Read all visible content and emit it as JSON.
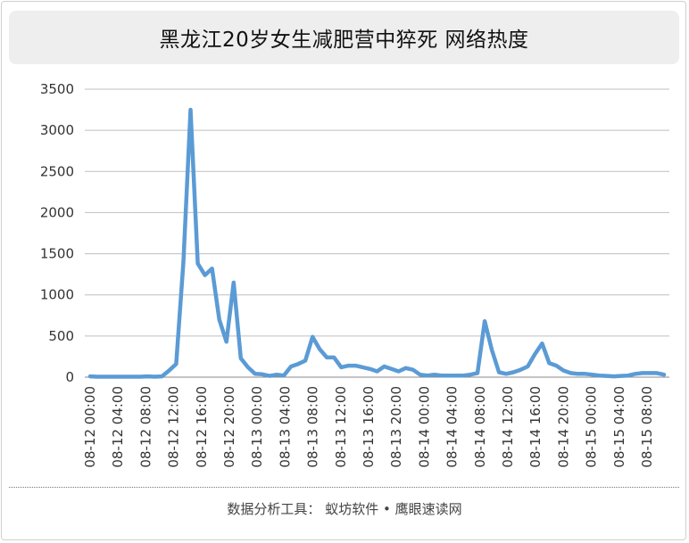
{
  "chart_data": {
    "type": "line",
    "title": "黑龙江20岁女生减肥营中猝死 网络热度",
    "xlabel": "",
    "ylabel": "",
    "ylim": [
      0,
      3500
    ],
    "yticks": [
      0,
      500,
      1000,
      1500,
      2000,
      2500,
      3000,
      3500
    ],
    "grid": true,
    "color": "#5b9bd5",
    "xtick_labels": [
      "08-12 00:00",
      "08-12 04:00",
      "08-12 08:00",
      "08-12 12:00",
      "08-12 16:00",
      "08-12 20:00",
      "08-13 00:00",
      "08-13 04:00",
      "08-13 08:00",
      "08-13 12:00",
      "08-13 16:00",
      "08-13 20:00",
      "08-14 00:00",
      "08-14 04:00",
      "08-14 08:00",
      "08-14 12:00",
      "08-14 16:00",
      "08-14 20:00",
      "08-15 00:00",
      "08-15 04:00",
      "08-15 08:00"
    ],
    "values": [
      10,
      5,
      5,
      5,
      5,
      5,
      5,
      5,
      10,
      5,
      10,
      80,
      160,
      1400,
      3250,
      1380,
      1240,
      1320,
      700,
      430,
      1150,
      230,
      120,
      40,
      35,
      15,
      30,
      20,
      130,
      160,
      200,
      490,
      340,
      240,
      240,
      120,
      140,
      140,
      120,
      100,
      70,
      130,
      100,
      70,
      110,
      90,
      30,
      20,
      30,
      20,
      20,
      20,
      20,
      30,
      50,
      680,
      330,
      60,
      40,
      60,
      90,
      130,
      280,
      410,
      170,
      140,
      80,
      50,
      40,
      40,
      30,
      20,
      15,
      10,
      15,
      20,
      40,
      50,
      50,
      50,
      30
    ]
  },
  "footer": "数据分析工具： 蚁坊软件 • 鹰眼速读网"
}
